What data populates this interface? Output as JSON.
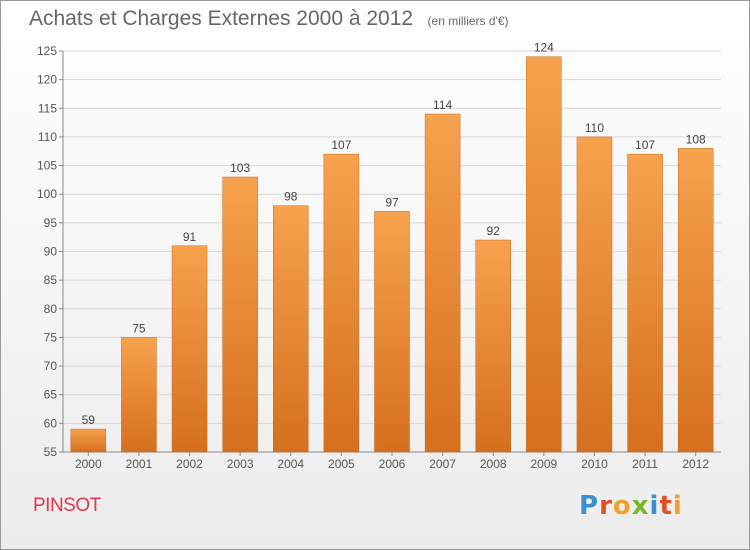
{
  "header": {
    "title": "Achats et Charges Externes 2000 à 2012",
    "subtitle": "(en milliers d'€)"
  },
  "footer": {
    "commune": "PINSOT",
    "brand_letters": [
      "P",
      "r",
      "o",
      "x",
      "i",
      "t",
      "i"
    ]
  },
  "colors": {
    "bar_top": "#f7a24e",
    "bar_bottom": "#d56f1d",
    "grid": "#d6d6d6",
    "commune": "#e4344f",
    "brand": [
      "#3a8fd0",
      "#e24d2a",
      "#f0a12a",
      "#76b82a",
      "#3a8fd0",
      "#e24d2a",
      "#f0a12a"
    ]
  },
  "chart_data": {
    "type": "bar",
    "categories": [
      "2000",
      "2001",
      "2002",
      "2003",
      "2004",
      "2005",
      "2006",
      "2007",
      "2008",
      "2009",
      "2010",
      "2011",
      "2012"
    ],
    "values": [
      59,
      75,
      91,
      103,
      98,
      107,
      97,
      114,
      92,
      124,
      110,
      107,
      108
    ],
    "ylim": [
      55,
      125
    ],
    "yticks": [
      55,
      60,
      65,
      70,
      75,
      80,
      85,
      90,
      95,
      100,
      105,
      110,
      115,
      120,
      125
    ],
    "grid": true,
    "data_labels": true
  }
}
